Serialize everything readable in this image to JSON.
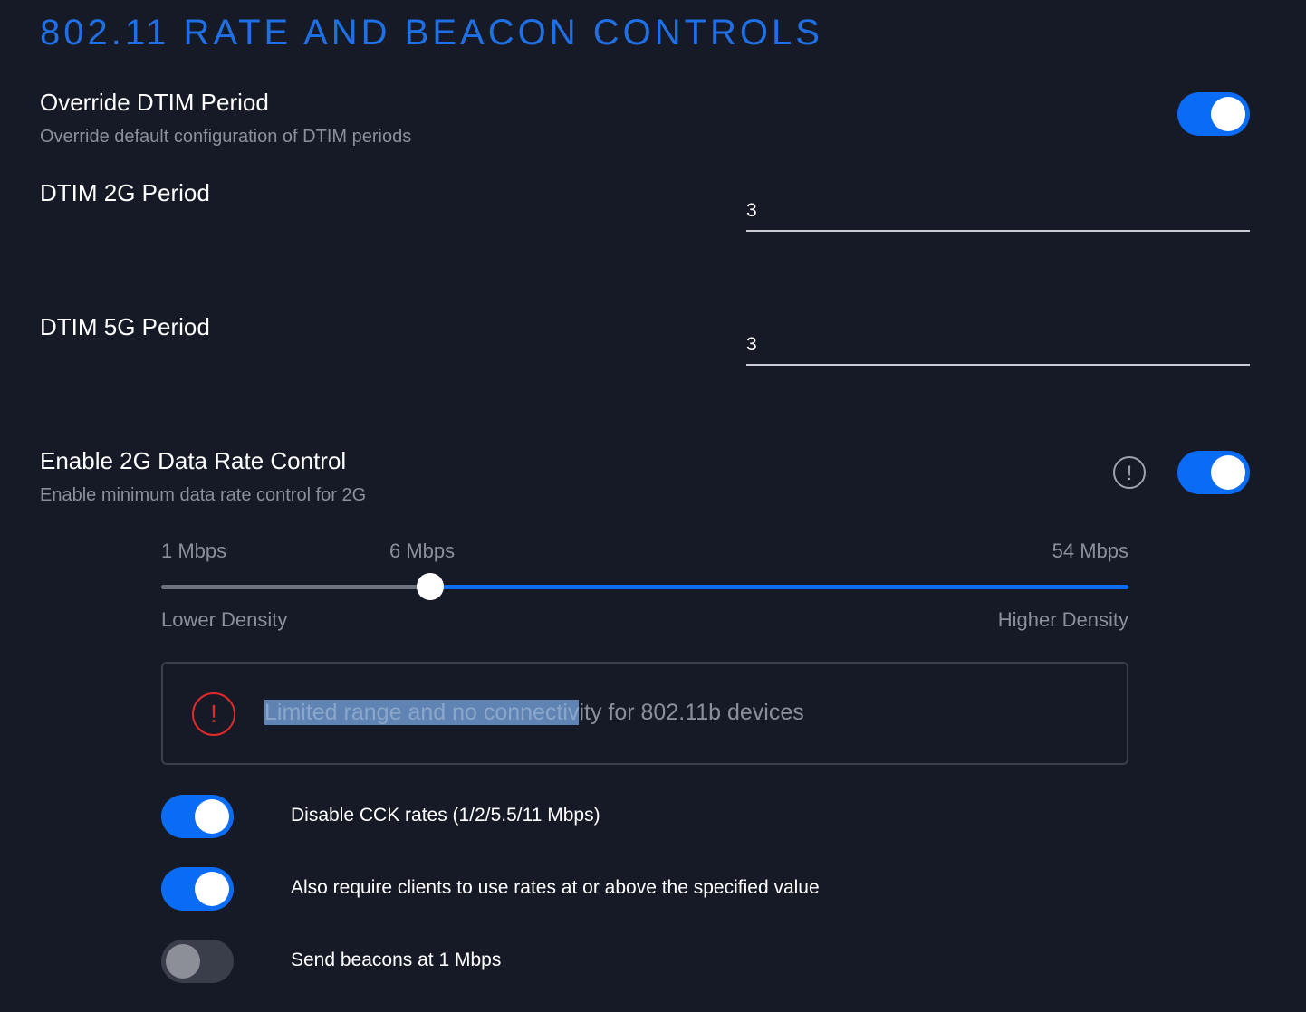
{
  "section": {
    "title": "802.11 RATE AND BEACON CONTROLS"
  },
  "override_dtim": {
    "title": "Override DTIM Period",
    "description": "Override default configuration of DTIM periods",
    "enabled": true
  },
  "dtim_2g": {
    "label": "DTIM 2G Period",
    "value": "3"
  },
  "dtim_5g": {
    "label": "DTIM 5G Period",
    "value": "3"
  },
  "rate_control_2g": {
    "title": "Enable 2G Data Rate Control",
    "description": "Enable minimum data rate control for 2G",
    "enabled": true,
    "info_icon": "!",
    "slider": {
      "min_label": "1 Mbps",
      "current_label": "6 Mbps",
      "max_label": "54 Mbps",
      "left_caption": "Lower Density",
      "right_caption": "Higher Density",
      "selected_value_mbps": 6
    },
    "warning": {
      "icon": "!",
      "text_highlighted": "Limited range and no connectiv",
      "text_rest": "ity for 802.11b devices"
    }
  },
  "options": [
    {
      "label": "Disable CCK rates (1/2/5.5/11 Mbps)",
      "enabled": true
    },
    {
      "label": "Also require clients to use rates at or above the specified value",
      "enabled": true
    },
    {
      "label": "Send beacons at 1 Mbps",
      "enabled": false
    }
  ],
  "colors": {
    "background": "#161a27",
    "accent": "#0a6cf5",
    "title": "#1f6fe5",
    "warning": "#e02a2a",
    "muted_text": "#8a8f9c"
  }
}
